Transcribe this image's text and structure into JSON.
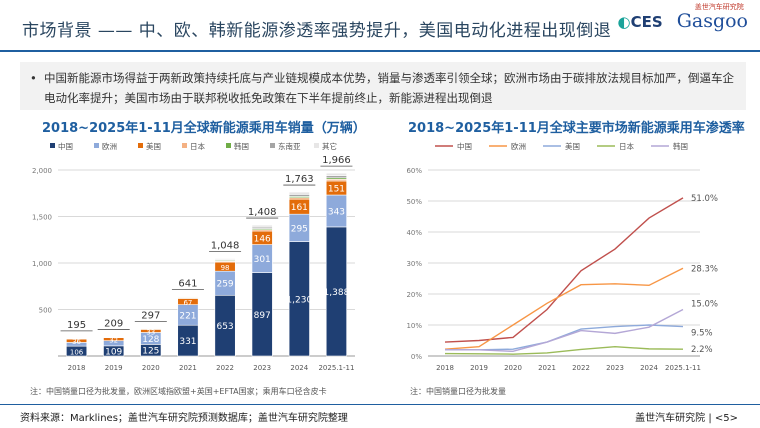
{
  "header": {
    "title": "市场背景 —— 中、欧、韩新能源渗透率强势提升，美国电动化进程出现倒退",
    "logo_ces": "CES",
    "logo_gasgoo": "Gasgoo",
    "logo_gasgoo_cn": "盖世汽车研究院"
  },
  "bullet": "中国新能源市场得益于两新政策持续托底与产业链规模成本优势，销量与渗透率引领全球；欧洲市场由于碳排放法规目标加严，倒逼车企电动化率提升；美国市场由于联邦税收抵免政策在下半年提前终止，新能源进程出现倒退",
  "chart_data": [
    {
      "type": "bar",
      "stacked": true,
      "title": "2018~2025年1-11月全球新能源乘用车销量（万辆）",
      "categories": [
        "2018",
        "2019",
        "2020",
        "2021",
        "2022",
        "2023",
        "2024",
        "2025.1-11"
      ],
      "ylim": [
        0,
        2000
      ],
      "yticks": [
        "0",
        "500",
        "1,000",
        "1,500",
        "2,000"
      ],
      "ytick_values": [
        0,
        500,
        1000,
        1500,
        2000
      ],
      "series": [
        {
          "name": "中国",
          "color": "#1f3f73",
          "values": [
            106,
            109,
            125,
            331,
            653,
            897,
            1230,
            1388
          ],
          "labels": [
            "106",
            "109",
            "125",
            "331",
            "653",
            "897",
            "1,230",
            "1,388"
          ]
        },
        {
          "name": "欧洲",
          "color": "#8eaadb",
          "values": [
            40,
            56,
            128,
            221,
            259,
            301,
            295,
            343
          ],
          "labels": [
            "",
            "",
            "128",
            "221",
            "259",
            "301",
            "295",
            "343"
          ]
        },
        {
          "name": "美国",
          "color": "#e36c0a",
          "values": [
            36,
            32,
            33,
            67,
            98,
            146,
            161,
            151
          ],
          "labels": [
            "36",
            "32",
            "33",
            "67",
            "98",
            "146",
            "161",
            "151"
          ]
        },
        {
          "name": "日本",
          "color": "#f4b183",
          "values": [
            4,
            4,
            3,
            5,
            8,
            14,
            16,
            18
          ]
        },
        {
          "name": "韩国",
          "color": "#70ad47",
          "values": [
            3,
            4,
            4,
            7,
            10,
            12,
            14,
            16
          ]
        },
        {
          "name": "东南亚",
          "color": "#a5a5a5",
          "values": [
            1,
            1,
            1,
            3,
            8,
            16,
            22,
            24
          ]
        },
        {
          "name": "其它",
          "color": "#e7e6e6",
          "values": [
            5,
            3,
            3,
            7,
            12,
            22,
            25,
            26
          ]
        }
      ],
      "totals": [
        "195",
        "209",
        "297",
        "641",
        "1,048",
        "1,408",
        "1,763",
        "1,966"
      ],
      "note": "注：中国销量口径为批发量，欧洲区域指欧盟+英国+EFTA国家；乘用车口径含皮卡",
      "legend": "top"
    },
    {
      "type": "line",
      "title": "2018~2025年1-11月全球主要市场新能源乘用车渗透率",
      "categories": [
        "2018",
        "2019",
        "2020",
        "2021",
        "2022",
        "2023",
        "2024",
        "2025.1-11"
      ],
      "ylim": [
        0,
        60
      ],
      "yticks": [
        "0%",
        "10%",
        "20%",
        "30%",
        "40%",
        "50%",
        "60%"
      ],
      "ytick_values": [
        0,
        10,
        20,
        30,
        40,
        50,
        60
      ],
      "series": [
        {
          "name": "中国",
          "color": "#c0504d",
          "values": [
            4.5,
            5.0,
            6.0,
            15.0,
            27.5,
            34.5,
            44.5,
            51.0
          ],
          "end_label": "51.0%"
        },
        {
          "name": "欧洲",
          "color": "#f79646",
          "values": [
            2.2,
            3.0,
            10.0,
            17.0,
            23.0,
            23.3,
            22.8,
            28.3
          ],
          "end_label": "28.3%"
        },
        {
          "name": "美国",
          "color": "#8eaadb",
          "values": [
            2.0,
            2.0,
            2.2,
            4.5,
            8.7,
            9.5,
            10.0,
            9.5
          ],
          "end_label": "9.5%"
        },
        {
          "name": "日本",
          "color": "#9bbb59",
          "values": [
            0.8,
            0.7,
            0.6,
            1.0,
            2.1,
            3.0,
            2.3,
            2.2
          ],
          "end_label": "2.2%"
        },
        {
          "name": "韩国",
          "color": "#b4a7d6",
          "values": [
            2.0,
            2.0,
            1.5,
            4.5,
            8.2,
            7.3,
            9.3,
            15.0
          ],
          "end_label": "15.0%"
        }
      ],
      "note": "注：中国销量口径为批发量",
      "legend": "top"
    }
  ],
  "footer": {
    "source": "资料来源：Marklines；盖世汽车研究院预测数据库；盖世汽车研究院整理",
    "right": "盖世汽车研究院 | <5>"
  }
}
